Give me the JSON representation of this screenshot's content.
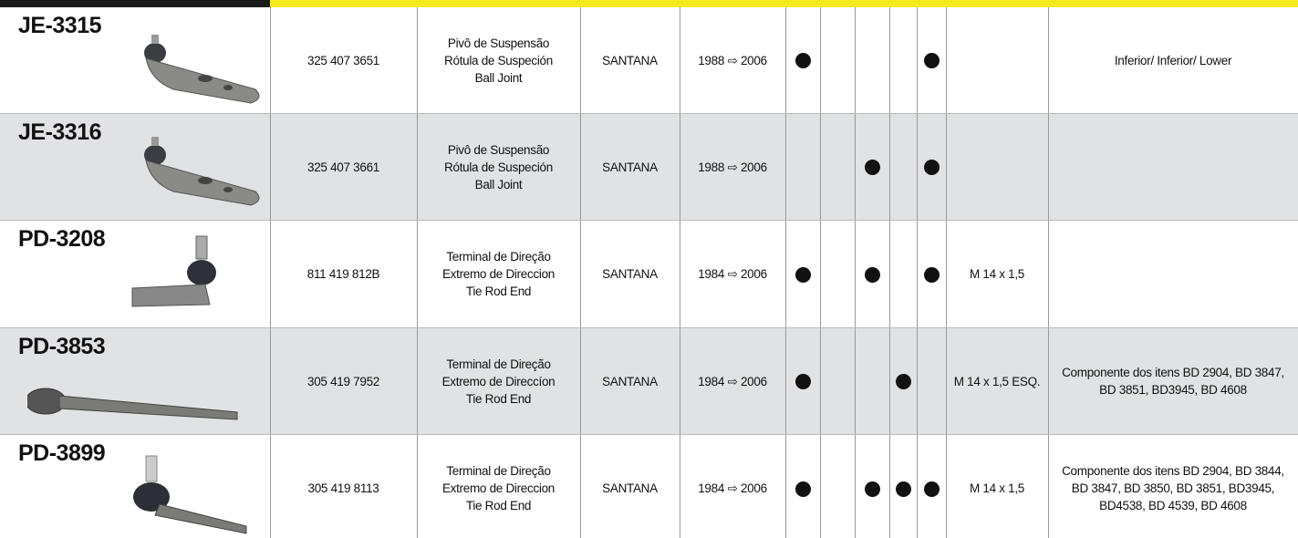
{
  "rows": [
    {
      "code": "JE-3315",
      "oem": "325 407 3651",
      "description": [
        "Pivô de Suspensão",
        "Rótula de Suspeción",
        "Ball Joint"
      ],
      "model": "SANTANA",
      "years": "1988 ⇨ 2006",
      "dots": [
        true,
        false,
        false,
        false,
        true
      ],
      "thread": null,
      "notes": [
        "Inferior/ Inferior/ Lower"
      ]
    },
    {
      "code": "JE-3316",
      "oem": "325 407 3661",
      "description": [
        "Pivô de Suspensão",
        "Rótula de Suspeción",
        "Ball Joint"
      ],
      "model": "SANTANA",
      "years": "1988 ⇨ 2006",
      "dots": [
        false,
        false,
        true,
        false,
        true
      ],
      "thread": null,
      "notes": null
    },
    {
      "code": "PD-3208",
      "oem": "811 419 812B",
      "description": [
        "Terminal de Direção",
        "Extremo de Direccion",
        "Tie Rod End"
      ],
      "model": "SANTANA",
      "years": "1984 ⇨ 2006",
      "dots": [
        true,
        false,
        true,
        false,
        true
      ],
      "thread": "M 14 x 1,5",
      "notes": null
    },
    {
      "code": "PD-3853",
      "oem": "305 419 7952",
      "description": [
        "Terminal de Direção",
        "Extremo de Direccíon",
        "Tie Rod End"
      ],
      "model": "SANTANA",
      "years": "1984 ⇨ 2006",
      "dots": [
        true,
        false,
        false,
        true,
        false
      ],
      "thread": "M 14 x 1,5 ESQ.",
      "notes": [
        "Componente dos itens BD 2904, BD 3847,",
        "BD 3851, BD3945, BD 4608"
      ]
    },
    {
      "code": "PD-3899",
      "oem": "305 419 8113",
      "description": [
        "Terminal de Direção",
        "Extremo de Direccion",
        "Tie Rod End"
      ],
      "model": "SANTANA",
      "years": "1984 ⇨ 2006",
      "dots": [
        true,
        false,
        true,
        true,
        true
      ],
      "thread": "M 14 x 1,5",
      "notes": [
        "Componente dos itens BD 2904, BD 3844,",
        "BD 3847, BD 3850, BD 3851, BD3945,",
        "BD4538, BD 4539, BD 4608"
      ]
    }
  ]
}
